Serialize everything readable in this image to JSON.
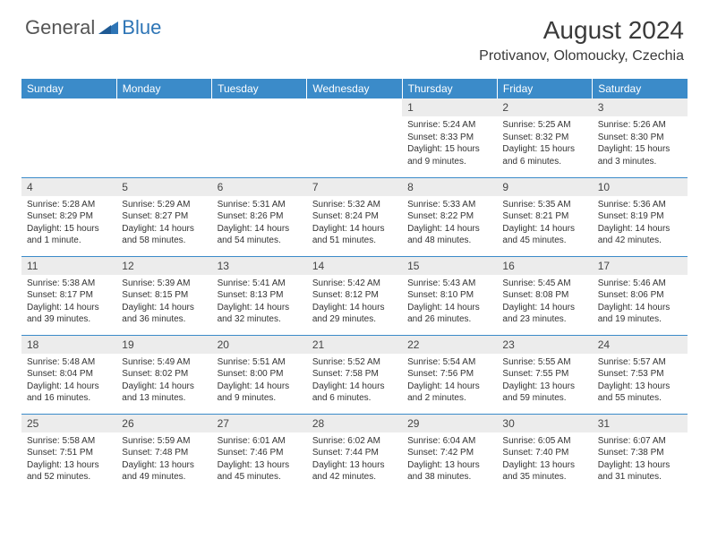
{
  "brand": {
    "part1": "General",
    "part2": "Blue"
  },
  "title": "August 2024",
  "location": "Protivanov, Olomoucky, Czechia",
  "colors": {
    "header_bg": "#3b8bc9",
    "header_text": "#ffffff",
    "daynum_bg": "#ececec",
    "border": "#3b8bc9",
    "brand_gray": "#555555",
    "brand_blue": "#2e75b6"
  },
  "weekdays": [
    "Sunday",
    "Monday",
    "Tuesday",
    "Wednesday",
    "Thursday",
    "Friday",
    "Saturday"
  ],
  "weeks": [
    [
      null,
      null,
      null,
      null,
      {
        "n": "1",
        "sr": "Sunrise: 5:24 AM",
        "ss": "Sunset: 8:33 PM",
        "dl": "Daylight: 15 hours and 9 minutes."
      },
      {
        "n": "2",
        "sr": "Sunrise: 5:25 AM",
        "ss": "Sunset: 8:32 PM",
        "dl": "Daylight: 15 hours and 6 minutes."
      },
      {
        "n": "3",
        "sr": "Sunrise: 5:26 AM",
        "ss": "Sunset: 8:30 PM",
        "dl": "Daylight: 15 hours and 3 minutes."
      }
    ],
    [
      {
        "n": "4",
        "sr": "Sunrise: 5:28 AM",
        "ss": "Sunset: 8:29 PM",
        "dl": "Daylight: 15 hours and 1 minute."
      },
      {
        "n": "5",
        "sr": "Sunrise: 5:29 AM",
        "ss": "Sunset: 8:27 PM",
        "dl": "Daylight: 14 hours and 58 minutes."
      },
      {
        "n": "6",
        "sr": "Sunrise: 5:31 AM",
        "ss": "Sunset: 8:26 PM",
        "dl": "Daylight: 14 hours and 54 minutes."
      },
      {
        "n": "7",
        "sr": "Sunrise: 5:32 AM",
        "ss": "Sunset: 8:24 PM",
        "dl": "Daylight: 14 hours and 51 minutes."
      },
      {
        "n": "8",
        "sr": "Sunrise: 5:33 AM",
        "ss": "Sunset: 8:22 PM",
        "dl": "Daylight: 14 hours and 48 minutes."
      },
      {
        "n": "9",
        "sr": "Sunrise: 5:35 AM",
        "ss": "Sunset: 8:21 PM",
        "dl": "Daylight: 14 hours and 45 minutes."
      },
      {
        "n": "10",
        "sr": "Sunrise: 5:36 AM",
        "ss": "Sunset: 8:19 PM",
        "dl": "Daylight: 14 hours and 42 minutes."
      }
    ],
    [
      {
        "n": "11",
        "sr": "Sunrise: 5:38 AM",
        "ss": "Sunset: 8:17 PM",
        "dl": "Daylight: 14 hours and 39 minutes."
      },
      {
        "n": "12",
        "sr": "Sunrise: 5:39 AM",
        "ss": "Sunset: 8:15 PM",
        "dl": "Daylight: 14 hours and 36 minutes."
      },
      {
        "n": "13",
        "sr": "Sunrise: 5:41 AM",
        "ss": "Sunset: 8:13 PM",
        "dl": "Daylight: 14 hours and 32 minutes."
      },
      {
        "n": "14",
        "sr": "Sunrise: 5:42 AM",
        "ss": "Sunset: 8:12 PM",
        "dl": "Daylight: 14 hours and 29 minutes."
      },
      {
        "n": "15",
        "sr": "Sunrise: 5:43 AM",
        "ss": "Sunset: 8:10 PM",
        "dl": "Daylight: 14 hours and 26 minutes."
      },
      {
        "n": "16",
        "sr": "Sunrise: 5:45 AM",
        "ss": "Sunset: 8:08 PM",
        "dl": "Daylight: 14 hours and 23 minutes."
      },
      {
        "n": "17",
        "sr": "Sunrise: 5:46 AM",
        "ss": "Sunset: 8:06 PM",
        "dl": "Daylight: 14 hours and 19 minutes."
      }
    ],
    [
      {
        "n": "18",
        "sr": "Sunrise: 5:48 AM",
        "ss": "Sunset: 8:04 PM",
        "dl": "Daylight: 14 hours and 16 minutes."
      },
      {
        "n": "19",
        "sr": "Sunrise: 5:49 AM",
        "ss": "Sunset: 8:02 PM",
        "dl": "Daylight: 14 hours and 13 minutes."
      },
      {
        "n": "20",
        "sr": "Sunrise: 5:51 AM",
        "ss": "Sunset: 8:00 PM",
        "dl": "Daylight: 14 hours and 9 minutes."
      },
      {
        "n": "21",
        "sr": "Sunrise: 5:52 AM",
        "ss": "Sunset: 7:58 PM",
        "dl": "Daylight: 14 hours and 6 minutes."
      },
      {
        "n": "22",
        "sr": "Sunrise: 5:54 AM",
        "ss": "Sunset: 7:56 PM",
        "dl": "Daylight: 14 hours and 2 minutes."
      },
      {
        "n": "23",
        "sr": "Sunrise: 5:55 AM",
        "ss": "Sunset: 7:55 PM",
        "dl": "Daylight: 13 hours and 59 minutes."
      },
      {
        "n": "24",
        "sr": "Sunrise: 5:57 AM",
        "ss": "Sunset: 7:53 PM",
        "dl": "Daylight: 13 hours and 55 minutes."
      }
    ],
    [
      {
        "n": "25",
        "sr": "Sunrise: 5:58 AM",
        "ss": "Sunset: 7:51 PM",
        "dl": "Daylight: 13 hours and 52 minutes."
      },
      {
        "n": "26",
        "sr": "Sunrise: 5:59 AM",
        "ss": "Sunset: 7:48 PM",
        "dl": "Daylight: 13 hours and 49 minutes."
      },
      {
        "n": "27",
        "sr": "Sunrise: 6:01 AM",
        "ss": "Sunset: 7:46 PM",
        "dl": "Daylight: 13 hours and 45 minutes."
      },
      {
        "n": "28",
        "sr": "Sunrise: 6:02 AM",
        "ss": "Sunset: 7:44 PM",
        "dl": "Daylight: 13 hours and 42 minutes."
      },
      {
        "n": "29",
        "sr": "Sunrise: 6:04 AM",
        "ss": "Sunset: 7:42 PM",
        "dl": "Daylight: 13 hours and 38 minutes."
      },
      {
        "n": "30",
        "sr": "Sunrise: 6:05 AM",
        "ss": "Sunset: 7:40 PM",
        "dl": "Daylight: 13 hours and 35 minutes."
      },
      {
        "n": "31",
        "sr": "Sunrise: 6:07 AM",
        "ss": "Sunset: 7:38 PM",
        "dl": "Daylight: 13 hours and 31 minutes."
      }
    ]
  ]
}
